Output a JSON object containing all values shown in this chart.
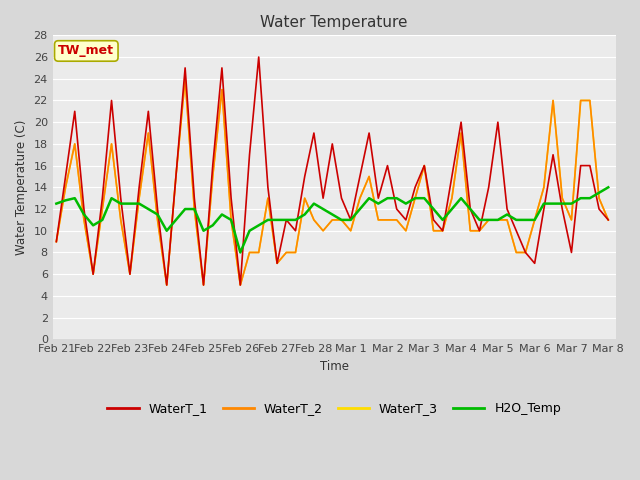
{
  "title": "Water Temperature",
  "ylabel": "Water Temperature (C)",
  "xlabel": "Time",
  "annotation": "TW_met",
  "ylim": [
    0,
    28
  ],
  "yticks": [
    0,
    2,
    4,
    6,
    8,
    10,
    12,
    14,
    16,
    18,
    20,
    22,
    24,
    26,
    28
  ],
  "bg_outer": "#d8d8d8",
  "bg_inner": "#ebebeb",
  "grid_color": "#ffffff",
  "line_colors": {
    "WaterT_1": "#cc0000",
    "WaterT_2": "#ff8800",
    "WaterT_3": "#ffdd00",
    "H2O_Temp": "#00bb00"
  },
  "xtick_labels": [
    "Feb 21",
    "Feb 22",
    "Feb 23",
    "Feb 24",
    "Feb 25",
    "Feb 26",
    "Feb 27",
    "Feb 28",
    "Mar 1",
    "Mar 2",
    "Mar 3",
    "Mar 4",
    "Mar 5",
    "Mar 6",
    "Mar 7",
    "Mar 8"
  ],
  "t_x": [
    0.0,
    0.25,
    0.5,
    0.75,
    1.0,
    1.25,
    1.5,
    1.75,
    2.0,
    2.25,
    2.5,
    2.75,
    3.0,
    3.25,
    3.5,
    3.75,
    4.0,
    4.25,
    4.5,
    4.75,
    5.0,
    5.25,
    5.5,
    5.75,
    6.0,
    6.25,
    6.5,
    6.75,
    7.0,
    7.25,
    7.5,
    7.75,
    8.0,
    8.25,
    8.5,
    8.75,
    9.0,
    9.25,
    9.5,
    9.75,
    10.0,
    10.25,
    10.5,
    10.75,
    11.0,
    11.25,
    11.5,
    11.75,
    12.0,
    12.25,
    12.5,
    12.75,
    13.0,
    13.25,
    13.5,
    13.75,
    14.0,
    14.25,
    14.5,
    14.75,
    15.0
  ],
  "w1_y": [
    9,
    15,
    21,
    12,
    6,
    13,
    22,
    13,
    6,
    14,
    21,
    12,
    5,
    15,
    25,
    13,
    5,
    16,
    25,
    13,
    5,
    17,
    26,
    14,
    7,
    11,
    10,
    15,
    19,
    13,
    18,
    13,
    11,
    15,
    19,
    13,
    16,
    12,
    11,
    14,
    16,
    11,
    10,
    15,
    20,
    12,
    10,
    14,
    20,
    12,
    10,
    8,
    7,
    12,
    17,
    12,
    8,
    16,
    16,
    12,
    11
  ],
  "w2_y": [
    9,
    14,
    18,
    11,
    6,
    12,
    18,
    11,
    6,
    13,
    19,
    11,
    5,
    15,
    24,
    12,
    5,
    15,
    23,
    11,
    5,
    8,
    8,
    13,
    7,
    8,
    8,
    13,
    11,
    10,
    11,
    11,
    10,
    13,
    15,
    11,
    11,
    11,
    10,
    13,
    16,
    10,
    10,
    13,
    19,
    10,
    10,
    11,
    11,
    11,
    8,
    8,
    11,
    14,
    22,
    13,
    11,
    22,
    22,
    13,
    11
  ],
  "w3_y": [
    9,
    14,
    18,
    11,
    6,
    12,
    18,
    11,
    6,
    13,
    19,
    11,
    5,
    15,
    24,
    12,
    5,
    15,
    23,
    11,
    5,
    8,
    8,
    13,
    7,
    8,
    8,
    13,
    11,
    10,
    11,
    11,
    10,
    13,
    15,
    11,
    11,
    11,
    10,
    13,
    16,
    10,
    10,
    13,
    19,
    10,
    10,
    11,
    11,
    11,
    8,
    8,
    11,
    14,
    22,
    13,
    11,
    22,
    22,
    13,
    11
  ],
  "h2o_y": [
    12.5,
    12.8,
    13.0,
    11.5,
    10.5,
    11.0,
    13.0,
    12.5,
    12.5,
    12.5,
    12.0,
    11.5,
    10.0,
    11.0,
    12.0,
    12.0,
    10.0,
    10.5,
    11.5,
    11.0,
    8.0,
    10.0,
    10.5,
    11.0,
    11.0,
    11.0,
    11.0,
    11.5,
    12.5,
    12.0,
    11.5,
    11.0,
    11.0,
    12.0,
    13.0,
    12.5,
    13.0,
    13.0,
    12.5,
    13.0,
    13.0,
    12.0,
    11.0,
    12.0,
    13.0,
    12.0,
    11.0,
    11.0,
    11.0,
    11.5,
    11.0,
    11.0,
    11.0,
    12.5,
    12.5,
    12.5,
    12.5,
    13.0,
    13.0,
    13.5,
    14.0
  ]
}
